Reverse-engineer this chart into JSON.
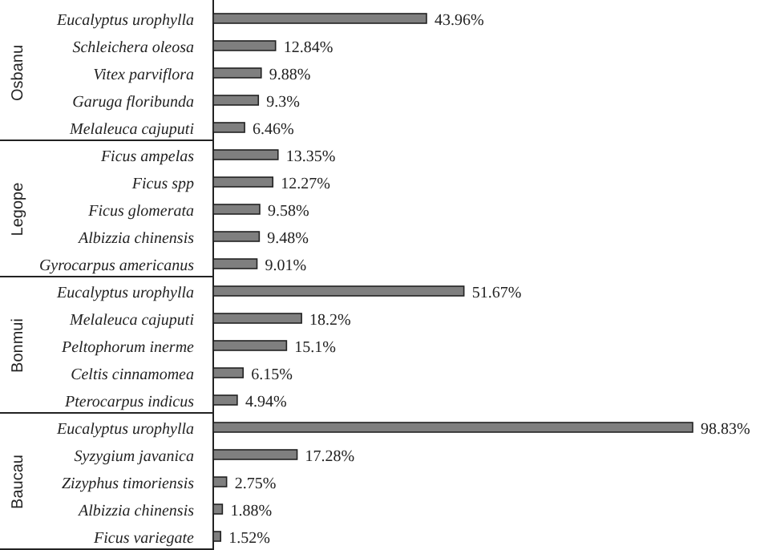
{
  "chart_data": {
    "type": "bar",
    "orientation": "horizontal",
    "categories": [
      "Eucalyptus urophylla",
      "Schleichera oleosa",
      "Vitex parviflora",
      "Garuga floribunda",
      "Melaleuca cajuputi",
      "Ficus ampelas",
      "Ficus spp",
      "Ficus glomerata",
      "Albizzia chinensis",
      "Gyrocarpus americanus",
      "Eucalyptus urophylla",
      "Melaleuca cajuputi",
      "Peltophorum inerme",
      "Celtis cinnamomea",
      "Pterocarpus indicus",
      "Eucalyptus urophylla",
      "Syzygium javanica",
      "Zizyphus timoriensis",
      "Albizzia chinensis",
      "Ficus variegate"
    ],
    "series": [
      {
        "color": "#7f7f7f",
        "values": [
          43.96,
          12.84,
          9.88,
          9.3,
          6.46,
          13.35,
          12.27,
          9.58,
          9.48,
          9.01,
          51.67,
          18.2,
          15.1,
          6.15,
          4.94,
          98.83,
          17.28,
          2.75,
          1.88,
          1.52
        ],
        "value_labels": [
          "43.96%",
          "12.84%",
          "9.88%",
          "9.3%",
          "6.46%",
          "13.35%",
          "12.27%",
          "9.58%",
          "9.48%",
          "9.01%",
          "51.67%",
          "18.2%",
          "15.1%",
          "6.15%",
          "4.94%",
          "98.83%",
          "17.28%",
          "2.75%",
          "1.88%",
          "1.52%"
        ]
      }
    ],
    "annotations": [
      "Osbanu",
      "Legope",
      "Bonmui",
      "Baucau"
    ]
  }
}
